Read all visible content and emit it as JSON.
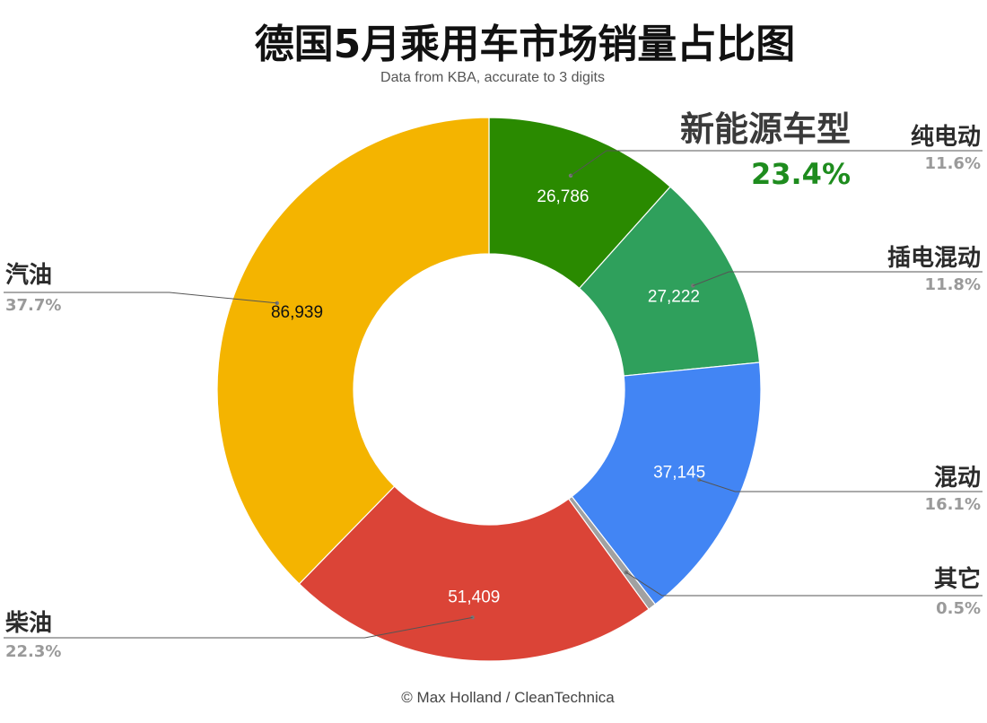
{
  "chart_data": {
    "type": "pie",
    "donut": true,
    "title": "德国5月乘用车市场销量占比图",
    "subtitle": "Data from KBA, accurate to 3 digits",
    "credit": "© Max Holland / CleanTechnica",
    "slices": [
      {
        "name": "纯电动",
        "value": 26786,
        "value_label": "26,786",
        "percent": "11.6%",
        "color": "#2a8a00",
        "text_color": "#ffffff"
      },
      {
        "name": "插电混动",
        "value": 27222,
        "value_label": "27,222",
        "percent": "11.8%",
        "color": "#2fa05c",
        "text_color": "#ffffff"
      },
      {
        "name": "混动",
        "value": 37145,
        "value_label": "37,145",
        "percent": "16.1%",
        "color": "#4285f4",
        "text_color": "#ffffff"
      },
      {
        "name": "其它",
        "value": 1100,
        "value_label": "",
        "percent": "0.5%",
        "color": "#a1a1a1",
        "text_color": "#ffffff"
      },
      {
        "name": "柴油",
        "value": 51409,
        "value_label": "51,409",
        "percent": "22.3%",
        "color": "#db4437",
        "text_color": "#ffffff"
      },
      {
        "name": "汽油",
        "value": 86939,
        "value_label": "86,939",
        "percent": "37.7%",
        "color": "#f4b400",
        "text_color": "#111111"
      }
    ],
    "annotation": {
      "label": "新能源车型",
      "value": "23.4%",
      "color": "#1e8c1e"
    }
  }
}
